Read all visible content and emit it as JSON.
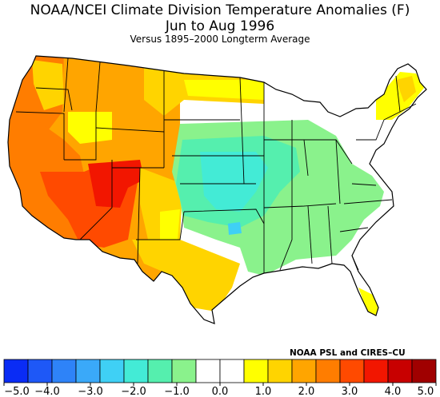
{
  "title": "NOAA/NCEI Climate Division Temperature Anomalies (F)",
  "subtitle": "Jun to Aug 1996",
  "baseline": "Versus 1895–2000 Longterm Average",
  "credit": "NOAA PSL and CIRES–CU",
  "legend": {
    "colors": [
      "#0a2cf5",
      "#1e58f7",
      "#2e83f8",
      "#3aa9f9",
      "#3fd0f5",
      "#43ebd6",
      "#55efae",
      "#8af28c",
      "#ffffff",
      "#ffffff",
      "#ffff00",
      "#ffd400",
      "#ffa500",
      "#ff7d00",
      "#ff4a00",
      "#f21600",
      "#c80000",
      "#a00000"
    ],
    "labels": [
      "−5.0",
      "−4.0",
      "−3.0",
      "−2.0",
      "−1.0",
      "0.0",
      "1.0",
      "2.0",
      "3.0",
      "4.0",
      "5.0"
    ]
  }
}
